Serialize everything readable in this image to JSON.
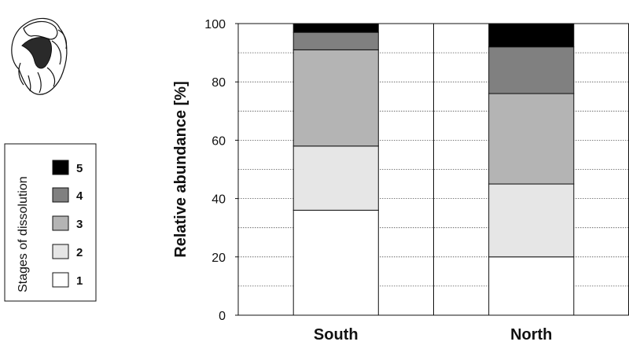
{
  "chart_data": {
    "type": "bar",
    "stacked": true,
    "categories": [
      "South",
      "North"
    ],
    "series": [
      {
        "name": "1",
        "color": "#ffffff",
        "values": [
          36,
          20
        ]
      },
      {
        "name": "2",
        "color": "#e6e6e6",
        "values": [
          22,
          25
        ]
      },
      {
        "name": "3",
        "color": "#b4b4b4",
        "values": [
          33,
          31
        ]
      },
      {
        "name": "4",
        "color": "#808080",
        "values": [
          6,
          16
        ]
      },
      {
        "name": "5",
        "color": "#000000",
        "values": [
          3,
          8
        ]
      }
    ],
    "ylabel": "Relative abundance [%]",
    "ylim": [
      0,
      100
    ],
    "yticks": [
      0,
      20,
      40,
      60,
      80,
      100
    ],
    "grid": "horizontal dotted every 10",
    "legend": {
      "title": "Stages of dissolution",
      "placement": "left",
      "entries": [
        "5",
        "4",
        "3",
        "2",
        "1"
      ]
    },
    "illustration": "foraminifera-shell-icon"
  }
}
